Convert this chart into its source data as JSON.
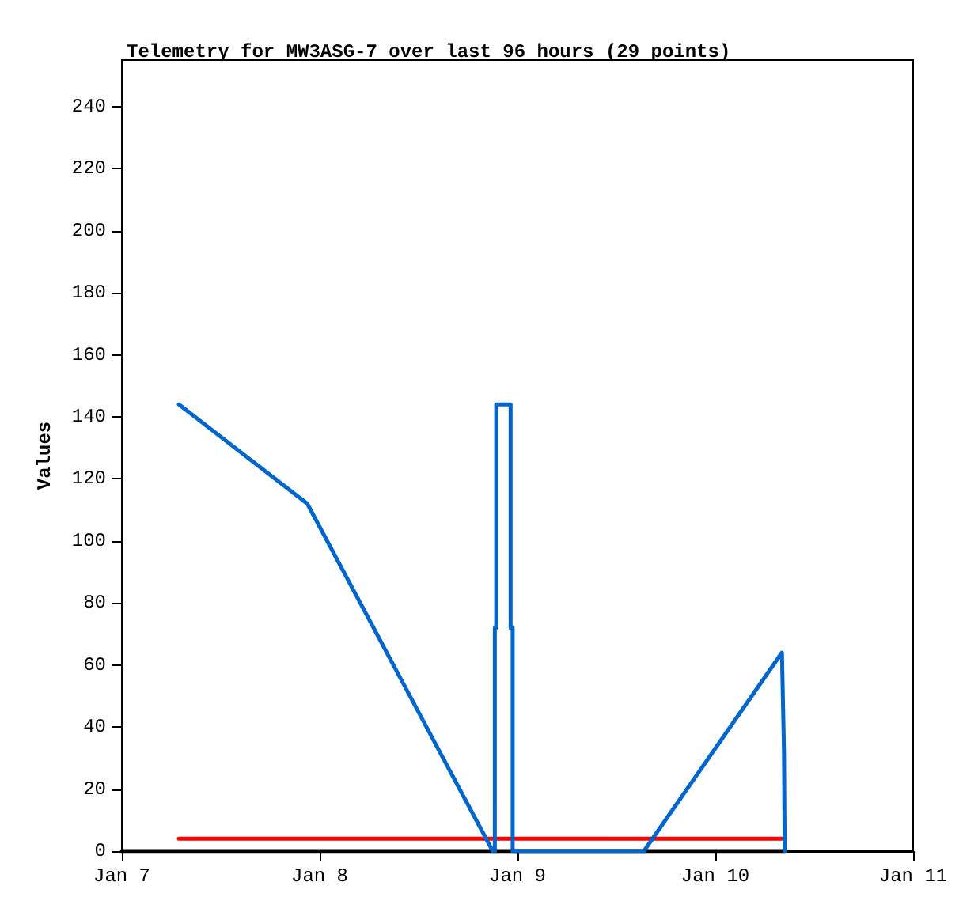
{
  "chart_data": {
    "type": "line",
    "title": "Telemetry for MW3ASG-7 over last 96 hours (29 points)",
    "ylabel": "Values",
    "series": [
      {
        "color": "#000000",
        "x": [
          "--01-07T00:00",
          "--01-10T08:25"
        ],
        "values": [
          0,
          0
        ]
      },
      {
        "color": "#ff0000",
        "x": [
          "--01-07T06:55",
          "--01-10T08:25"
        ],
        "values": [
          4,
          4
        ]
      },
      {
        "color": "#0066cc",
        "x": [
          "--01-07T06:55",
          "--01-07T22:30",
          "--01-08T21:00",
          "--01-08T21:15",
          "--01-08T21:15",
          "--01-08T21:25",
          "--01-08T21:25",
          "--01-08T23:10",
          "--01-08T23:10",
          "--01-08T23:25",
          "--01-08T23:25",
          "--01-09T15:20",
          "--01-10T08:05",
          "--01-10T08:20",
          "--01-10T08:25"
        ],
        "values": [
          144,
          112,
          0,
          0,
          72,
          72,
          144,
          144,
          72,
          72,
          0,
          0,
          64,
          32,
          0
        ]
      }
    ],
    "xlim": [
      "--01-07",
      "--01-11"
    ],
    "xticks": [
      {
        "value": "--01-07",
        "label": "Jan 7"
      },
      {
        "value": "--01-08",
        "label": "Jan 8"
      },
      {
        "value": "--01-09",
        "label": "Jan 9"
      },
      {
        "value": "--01-10",
        "label": "Jan 10"
      },
      {
        "value": "--01-11",
        "label": "Jan 11"
      }
    ],
    "ylim": [
      0,
      255
    ],
    "yticks": [
      0,
      20,
      40,
      60,
      80,
      100,
      120,
      140,
      160,
      180,
      200,
      220,
      240
    ],
    "grid": false,
    "marker": "none",
    "line_style": "solid"
  }
}
